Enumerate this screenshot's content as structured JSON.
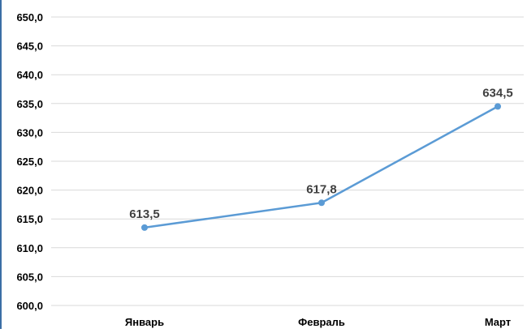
{
  "chart_data": {
    "type": "line",
    "title": "",
    "xlabel": "",
    "ylabel": "",
    "categories": [
      "Январь",
      "Февраль",
      "Март"
    ],
    "series": [
      {
        "values": [
          613.5,
          617.8,
          634.5
        ],
        "data_labels": [
          "613,5",
          "617,8",
          "634,5"
        ],
        "color": "#5b9bd5"
      }
    ],
    "ylim": [
      600.0,
      650.0
    ],
    "y_tick_labels": [
      "600,0",
      "605,0",
      "610,0",
      "615,0",
      "620,0",
      "625,0",
      "630,0",
      "635,0",
      "640,0",
      "645,0",
      "650,0"
    ],
    "grid": "horizontal",
    "legend": "none",
    "gridline_color": "#d9d9d9",
    "frame_color": "#3b6ea5"
  }
}
